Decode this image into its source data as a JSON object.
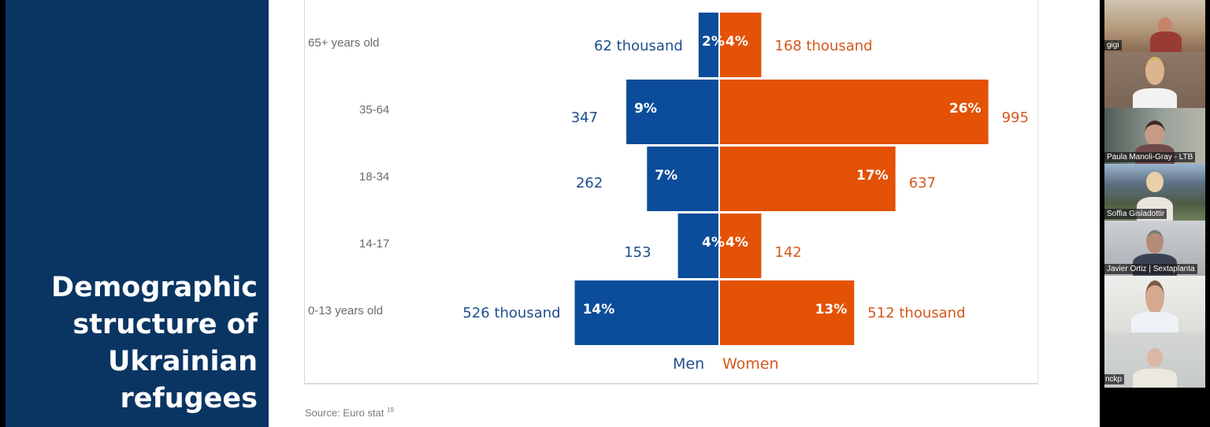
{
  "slide": {
    "title_lines": [
      "Demographic",
      "structure of",
      "Ukrainian",
      "refugees"
    ],
    "source_text": "Source: Euro   stat",
    "source_footnote": "19",
    "colors": {
      "title_panel": "#0a3563",
      "men": "#0b4d9a",
      "women": "#e35205"
    }
  },
  "chart_data": {
    "type": "bar",
    "subtype": "population-pyramid",
    "title": "Demographic structure of Ukrainian refugees",
    "categories": [
      "65+ years old",
      "35-64",
      "18-34",
      "14-17",
      "0-13  years old"
    ],
    "series": [
      {
        "name": "Men",
        "percent": [
          2,
          9,
          7,
          4,
          14
        ],
        "value_labels": [
          "62 thousand",
          "347",
          "262",
          "153",
          "526 thousand"
        ],
        "color": "#0b4d9a"
      },
      {
        "name": "Women",
        "percent": [
          4,
          26,
          17,
          4,
          13
        ],
        "value_labels": [
          "168 thousand",
          "995",
          "637",
          "142",
          "512 thousand"
        ],
        "color": "#e35205"
      }
    ],
    "percent_labels_men": [
      "2%",
      "9%",
      "7%",
      "4%",
      "14%"
    ],
    "percent_labels_women": [
      "4%",
      "26%",
      "17%",
      "4%",
      "13%"
    ],
    "legend": [
      "Men",
      "Women"
    ],
    "legend_position": "bottom-center",
    "xlabel": "",
    "ylabel": "",
    "grid": false
  },
  "participants": [
    {
      "name": "gigi"
    },
    {
      "name": ""
    },
    {
      "name": "Paula Manoli-Gray - LTB"
    },
    {
      "name": "Soffia Gisladottir"
    },
    {
      "name": "Javier Ortiz | Sextaplanta"
    },
    {
      "name": ""
    },
    {
      "name": "nckp"
    }
  ]
}
